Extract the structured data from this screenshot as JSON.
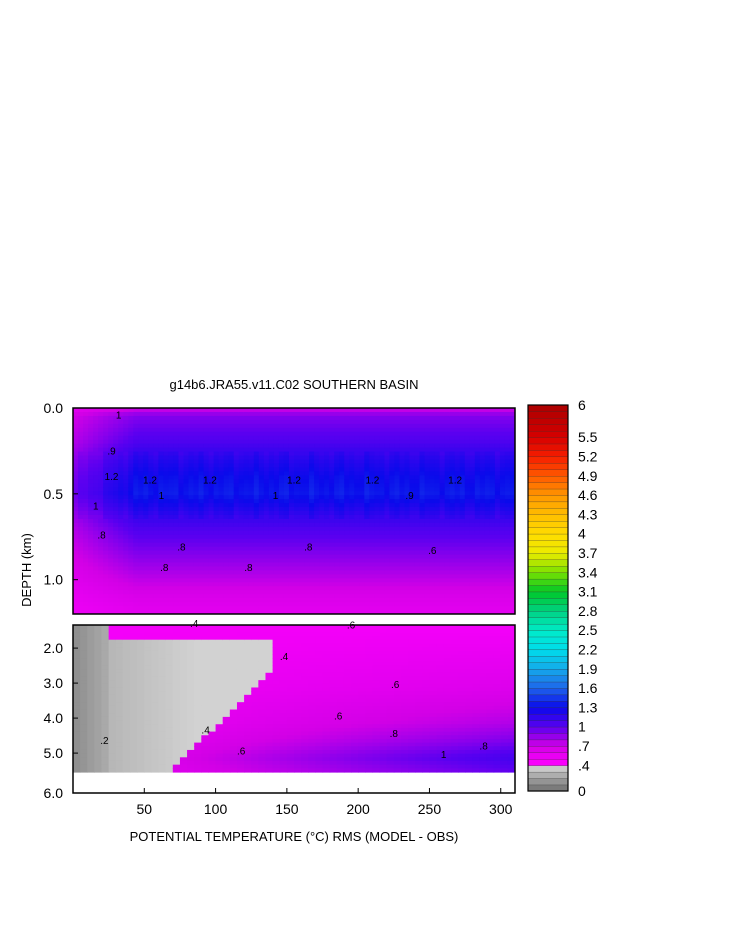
{
  "chart_data": {
    "type": "heatmap",
    "title": "g14b6.JRA55.v11.C02 SOUTHERN BASIN",
    "xlabel": "POTENTIAL TEMPERATURE (°C) RMS (MODEL - OBS)",
    "ylabel": "DEPTH (km)",
    "xlim": [
      0,
      310
    ],
    "x_ticks": [
      "50",
      "100",
      "150",
      "200",
      "250",
      "300"
    ],
    "panels": [
      {
        "name": "upper",
        "ylim": [
          0.0,
          1.2
        ],
        "y_ticks": [
          "0.0",
          "0.5",
          "1.0"
        ],
        "contour_labels": [
          "1",
          ".9",
          "1.2",
          "1.2",
          "1.2",
          "1.2",
          "1.2",
          "1.2",
          "1",
          "1",
          "1",
          ".9",
          ".8",
          ".8",
          ".8",
          ".6",
          ".8",
          ".8"
        ],
        "profile": {
          "depth": [
            0.0,
            0.02,
            0.05,
            0.1,
            0.15,
            0.2,
            0.3,
            0.4,
            0.5,
            0.6,
            0.65,
            0.7,
            0.75,
            0.8,
            0.85,
            0.9,
            1.0,
            1.1,
            1.2
          ],
          "value": [
            0.65,
            0.8,
            0.9,
            0.95,
            1.0,
            1.05,
            1.2,
            1.3,
            1.35,
            1.2,
            1.12,
            1.05,
            1.0,
            0.95,
            0.9,
            0.85,
            0.75,
            0.65,
            0.58
          ]
        }
      },
      {
        "name": "lower",
        "ylim": [
          1.2,
          6.0
        ],
        "y_ticks": [
          "2.0",
          "3.0",
          "4.0",
          "5.0",
          "6.0"
        ],
        "contour_labels": [
          ".4",
          ".6",
          ".4",
          ".6",
          ".6",
          ".4",
          ".2",
          ".8",
          ".6",
          ".8",
          "1"
        ],
        "data_bottom_depth": 5.4,
        "profile_far_x": {
          "depth": [
            1.2,
            2.0,
            3.0,
            4.0,
            4.5,
            5.0,
            5.4
          ],
          "value": [
            0.45,
            0.52,
            0.6,
            0.75,
            0.88,
            1.05,
            0.95
          ]
        }
      }
    ],
    "colorbar": {
      "min": 0,
      "max": 6,
      "labels": [
        "6",
        "5.5",
        "5.2",
        "4.9",
        "4.6",
        "4.3",
        "4",
        "3.7",
        "3.4",
        "3.1",
        "2.8",
        "2.5",
        "2.2",
        "1.9",
        "1.6",
        "1.3",
        "1",
        ".7",
        ".4",
        "0"
      ]
    },
    "grid": false,
    "legend": "right"
  }
}
